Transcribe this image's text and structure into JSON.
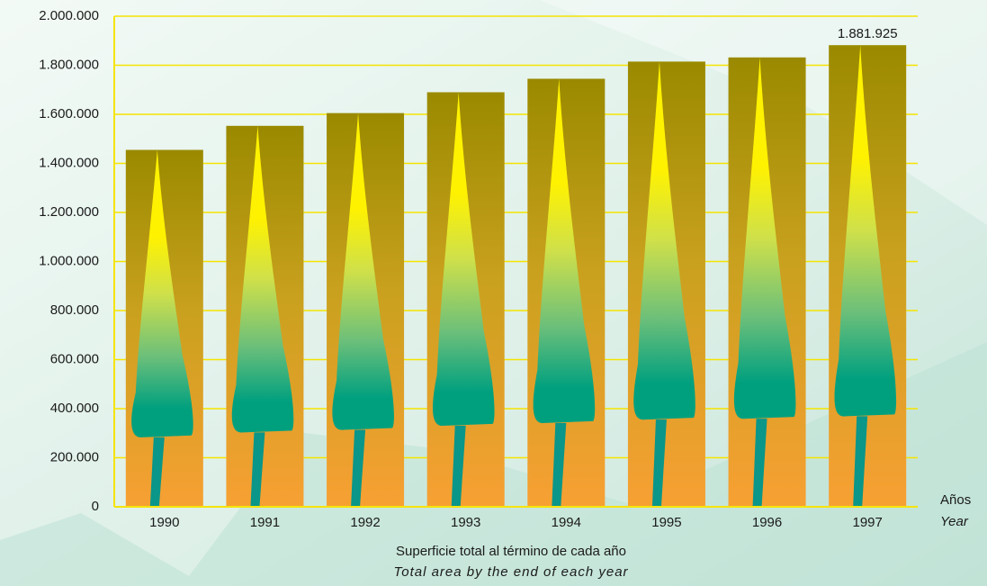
{
  "chart_data": {
    "type": "bar",
    "x_label": "Superficie total al término de cada año",
    "x_label_en": "Total area by the end of each year",
    "x_axis_unit": "Años",
    "x_axis_unit_en": "Year",
    "categories": [
      "1990",
      "1991",
      "1992",
      "1993",
      "1994",
      "1995",
      "1996",
      "1997"
    ],
    "values": [
      1455000,
      1553000,
      1605000,
      1690000,
      1745000,
      1815000,
      1832000,
      1881925
    ],
    "value_labels": [
      null,
      null,
      null,
      null,
      null,
      null,
      null,
      "1.881.925"
    ],
    "color": "#f7a033",
    "ylim": [
      0,
      2000000
    ],
    "yticks": [
      {
        "value": 0,
        "label": "0"
      },
      {
        "value": 200000,
        "label": "200.000"
      },
      {
        "value": 400000,
        "label": "400.000"
      },
      {
        "value": 600000,
        "label": "600.000"
      },
      {
        "value": 800000,
        "label": "800.000"
      },
      {
        "value": 1000000,
        "label": "1.000.000"
      },
      {
        "value": 1200000,
        "label": "1.200.000"
      },
      {
        "value": 1400000,
        "label": "1.400.000"
      },
      {
        "value": 1600000,
        "label": "1.600.000"
      },
      {
        "value": 1800000,
        "label": "1.800.000"
      },
      {
        "value": 2000000,
        "label": "2.000.000"
      }
    ],
    "grid": true
  }
}
